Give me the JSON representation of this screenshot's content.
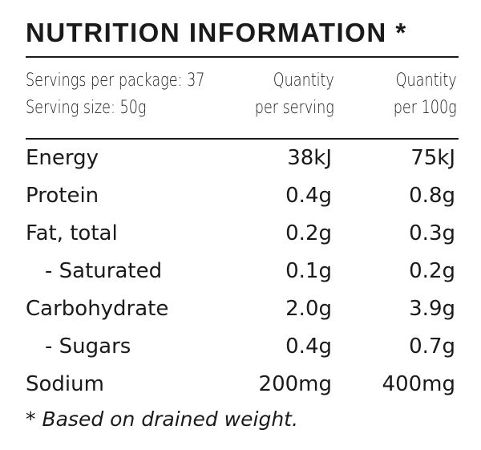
{
  "panel": {
    "title": "NUTRITION INFORMATION",
    "title_asterisk": "*",
    "servings_per_package": "Servings per package: 37",
    "serving_size": "Serving size: 50g",
    "col_serving_line1": "Quantity",
    "col_serving_line2": "per serving",
    "col_100g_line1": "Quantity",
    "col_100g_line2": "per 100g",
    "rows": [
      {
        "name": "Energy",
        "per_serving": "38kJ",
        "per_100g": "75kJ"
      },
      {
        "name": "Protein",
        "per_serving": "0.4g",
        "per_100g": "0.8g"
      },
      {
        "name": "Fat, total",
        "per_serving": "0.2g",
        "per_100g": "0.3g"
      },
      {
        "name": "- Saturated",
        "per_serving": "0.1g",
        "per_100g": "0.2g"
      },
      {
        "name": "Carbohydrate",
        "per_serving": "2.0g",
        "per_100g": "3.9g"
      },
      {
        "name": "- Sugars",
        "per_serving": "0.4g",
        "per_100g": "0.7g"
      },
      {
        "name": "Sodium",
        "per_serving": "200mg",
        "per_100g": "400mg"
      }
    ],
    "footnote_asterisk": "*",
    "footnote_text": "Based on drained weight."
  }
}
